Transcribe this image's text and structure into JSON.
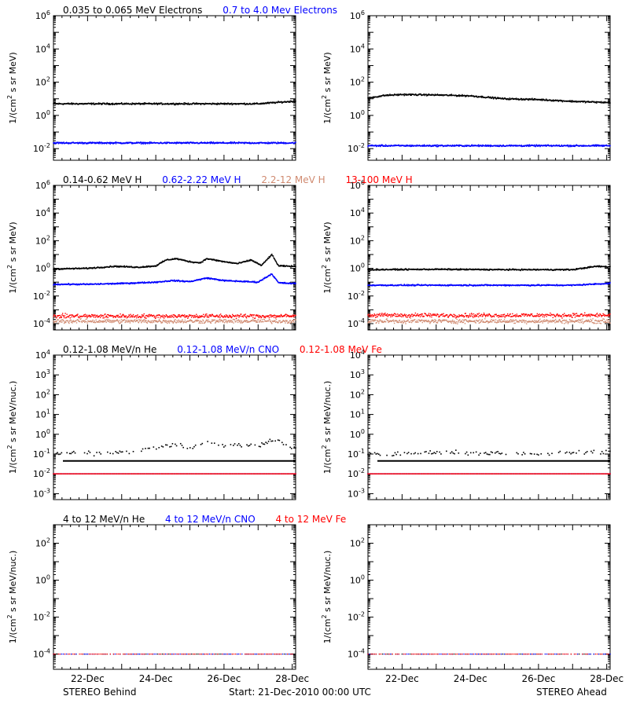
{
  "colors": {
    "black": "#000000",
    "blue": "#0000ff",
    "red": "#ff0000",
    "salmon": "#d08a70"
  },
  "legends": {
    "row1": [
      {
        "label": "0.035 to 0.065 MeV Electrons",
        "color": "#000000"
      },
      {
        "label": "0.7 to 4.0 Mev Electrons",
        "color": "#0000ff"
      }
    ],
    "row2": [
      {
        "label": "0.14-0.62 MeV H",
        "color": "#000000"
      },
      {
        "label": "0.62-2.22 MeV H",
        "color": "#0000ff"
      },
      {
        "label": "2.2-12 MeV H",
        "color": "#d08a70"
      },
      {
        "label": "13-100 MeV H",
        "color": "#ff0000"
      }
    ],
    "row3": [
      {
        "label": "0.12-1.08 MeV/n He",
        "color": "#000000"
      },
      {
        "label": "0.12-1.08 MeV/n CNO",
        "color": "#0000ff"
      },
      {
        "label": "0.12-1.08 MeV Fe",
        "color": "#ff0000"
      }
    ],
    "row4": [
      {
        "label": "4 to 12 MeV/n He",
        "color": "#000000"
      },
      {
        "label": "4 to 12 MeV/n CNO",
        "color": "#0000ff"
      },
      {
        "label": "4 to 12 MeV Fe",
        "color": "#ff0000"
      }
    ]
  },
  "footer": {
    "left": "STEREO Behind",
    "center": "Start: 21-Dec-2010 00:00 UTC",
    "right": "STEREO Ahead"
  },
  "chart_data": [
    {
      "panel": "row1-behind",
      "type": "scatter",
      "yscale": "log",
      "ylabel": "1/(cm² s sr MeV)",
      "ylim": [
        0.002,
        1000000
      ],
      "yticks": [
        0.01,
        1,
        100,
        10000,
        1000000
      ],
      "xticks": [
        "22-Dec",
        "24-Dec",
        "26-Dec",
        "28-Dec"
      ],
      "series": [
        {
          "name": "0.035 to 0.065 MeV Electrons",
          "color": "#000000",
          "x": [
            21,
            23,
            25,
            27,
            28
          ],
          "y": [
            5,
            5,
            5,
            5,
            7
          ]
        },
        {
          "name": "0.7 to 4.0 Mev Electrons",
          "color": "#0000ff",
          "x": [
            21,
            23,
            25,
            27,
            28
          ],
          "y": [
            0.022,
            0.022,
            0.022,
            0.022,
            0.022
          ]
        }
      ]
    },
    {
      "panel": "row1-ahead",
      "type": "scatter",
      "yscale": "log",
      "ylabel": "1/(cm² s sr MeV)",
      "ylim": [
        0.002,
        1000000
      ],
      "yticks": [
        0.01,
        1,
        100,
        10000,
        1000000
      ],
      "xticks": [
        "22-Dec",
        "24-Dec",
        "26-Dec",
        "28-Dec"
      ],
      "series": [
        {
          "name": "0.035 to 0.065 MeV Electrons",
          "color": "#000000",
          "x": [
            21,
            21.5,
            22,
            23,
            24,
            25,
            26,
            27,
            28
          ],
          "y": [
            11,
            16,
            18,
            17,
            15,
            10,
            9,
            7,
            6
          ]
        },
        {
          "name": "0.7 to 4.0 Mev Electrons",
          "color": "#0000ff",
          "x": [
            21,
            23,
            25,
            27,
            28
          ],
          "y": [
            0.015,
            0.015,
            0.015,
            0.015,
            0.015
          ]
        }
      ]
    },
    {
      "panel": "row2-behind",
      "type": "scatter",
      "yscale": "log",
      "ylabel": "1/(cm² s sr MeV)",
      "ylim": [
        3.5e-05,
        1000000
      ],
      "yticks": [
        0.0001,
        0.01,
        1,
        100,
        10000,
        1000000
      ],
      "xticks": [
        "22-Dec",
        "24-Dec",
        "26-Dec",
        "28-Dec"
      ],
      "series": [
        {
          "name": "0.14-0.62 MeV H",
          "color": "#000000",
          "x": [
            21,
            22,
            22.8,
            23.5,
            24,
            24.3,
            24.6,
            25,
            25.3,
            25.5,
            26,
            26.4,
            26.8,
            27.1,
            27.4,
            27.6,
            28
          ],
          "y": [
            0.9,
            1.0,
            1.4,
            1.2,
            1.5,
            4,
            5,
            3,
            2.5,
            5,
            3,
            2.2,
            4,
            1.6,
            10,
            1.5,
            1.4
          ]
        },
        {
          "name": "0.62-2.22 MeV H",
          "color": "#0000ff",
          "x": [
            21,
            22,
            23,
            24,
            24.5,
            25,
            25.5,
            26,
            27,
            27.4,
            27.6,
            28
          ],
          "y": [
            0.07,
            0.07,
            0.08,
            0.1,
            0.13,
            0.11,
            0.2,
            0.13,
            0.1,
            0.4,
            0.09,
            0.08
          ]
        },
        {
          "name": "2.2-12 MeV H",
          "color": "#d08a70",
          "x": [
            21,
            28
          ],
          "y": [
            0.00015,
            0.00015
          ]
        },
        {
          "name": "13-100 MeV H",
          "color": "#ff0000",
          "x": [
            21,
            28
          ],
          "y": [
            0.00035,
            0.00035
          ]
        }
      ]
    },
    {
      "panel": "row2-ahead",
      "type": "scatter",
      "yscale": "log",
      "ylabel": "1/(cm² s sr MeV)",
      "ylim": [
        3.5e-05,
        1000000
      ],
      "yticks": [
        0.0001,
        0.01,
        1,
        100,
        10000,
        1000000
      ],
      "xticks": [
        "22-Dec",
        "24-Dec",
        "26-Dec",
        "28-Dec"
      ],
      "series": [
        {
          "name": "0.14-0.62 MeV H",
          "color": "#000000",
          "x": [
            21,
            23,
            25,
            27,
            27.7,
            28
          ],
          "y": [
            0.8,
            0.85,
            0.8,
            0.8,
            1.4,
            1.3
          ]
        },
        {
          "name": "0.62-2.22 MeV H",
          "color": "#0000ff",
          "x": [
            21,
            23,
            25,
            27,
            28
          ],
          "y": [
            0.06,
            0.06,
            0.06,
            0.06,
            0.08
          ]
        },
        {
          "name": "2.2-12 MeV H",
          "color": "#d08a70",
          "x": [
            21,
            28
          ],
          "y": [
            0.00015,
            0.00015
          ]
        },
        {
          "name": "13-100 MeV H",
          "color": "#ff0000",
          "x": [
            21,
            28
          ],
          "y": [
            0.0004,
            0.0004
          ]
        }
      ]
    },
    {
      "panel": "row3-behind",
      "type": "scatter",
      "yscale": "log",
      "ylabel": "1/(cm² s sr MeV/nuc.)",
      "ylim": [
        0.0005,
        10000
      ],
      "yticks": [
        0.001,
        0.01,
        0.1,
        1,
        10,
        100,
        1000,
        10000
      ],
      "xticks": [
        "22-Dec",
        "24-Dec",
        "26-Dec",
        "28-Dec"
      ],
      "series": [
        {
          "name": "0.12-1.08 MeV/n He",
          "color": "#000000",
          "x": [
            21,
            22,
            23,
            24,
            24.5,
            25,
            25.5,
            26,
            26.5,
            27,
            27.5,
            28
          ],
          "y": [
            0.1,
            0.11,
            0.12,
            0.2,
            0.3,
            0.2,
            0.4,
            0.25,
            0.3,
            0.25,
            0.6,
            0.2
          ]
        },
        {
          "name": "0.12-1.08 MeV/n CNO",
          "color": "#0000ff",
          "x": [
            21,
            28
          ],
          "y": [
            0.01,
            0.01
          ]
        },
        {
          "name": "0.12-1.08 MeV Fe",
          "color": "#ff0000",
          "x": [
            21,
            28
          ],
          "y": [
            0.01,
            0.01
          ]
        }
      ]
    },
    {
      "panel": "row3-ahead",
      "type": "scatter",
      "yscale": "log",
      "ylabel": "1/(cm² s sr MeV/nuc.)",
      "ylim": [
        0.0005,
        10000
      ],
      "yticks": [
        0.001,
        0.01,
        0.1,
        1,
        10,
        100,
        1000,
        10000
      ],
      "xticks": [
        "22-Dec",
        "24-Dec",
        "26-Dec",
        "28-Dec"
      ],
      "series": [
        {
          "name": "0.12-1.08 MeV/n He",
          "color": "#000000",
          "x": [
            21,
            22,
            23,
            24,
            25,
            26,
            27,
            28
          ],
          "y": [
            0.1,
            0.1,
            0.12,
            0.12,
            0.1,
            0.1,
            0.12,
            0.13
          ]
        },
        {
          "name": "0.12-1.08 MeV/n CNO",
          "color": "#0000ff",
          "x": [
            21,
            28
          ],
          "y": [
            0.01,
            0.01
          ]
        },
        {
          "name": "0.12-1.08 MeV Fe",
          "color": "#ff0000",
          "x": [
            21,
            28
          ],
          "y": [
            0.01,
            0.01
          ]
        }
      ]
    },
    {
      "panel": "row4-behind",
      "type": "scatter",
      "yscale": "log",
      "ylabel": "1/(cm² s sr MeV/nuc.)",
      "ylim": [
        1.5e-05,
        1000
      ],
      "yticks": [
        0.0001,
        0.01,
        1,
        100
      ],
      "xticks": [
        "22-Dec",
        "24-Dec",
        "26-Dec",
        "28-Dec"
      ],
      "series": [
        {
          "name": "4 to 12 MeV/n He",
          "color": "#000000",
          "x": [
            21,
            28
          ],
          "y": [
            0.0001,
            0.0001
          ]
        },
        {
          "name": "4 to 12 MeV/n CNO",
          "color": "#0000ff",
          "x": [
            21,
            28
          ],
          "y": [
            0.0001,
            0.0001
          ]
        },
        {
          "name": "4 to 12 MeV Fe",
          "color": "#ff0000",
          "x": [
            21,
            28
          ],
          "y": [
            0.0001,
            0.0001
          ]
        }
      ]
    },
    {
      "panel": "row4-ahead",
      "type": "scatter",
      "yscale": "log",
      "ylabel": "1/(cm² s sr MeV/nuc.)",
      "ylim": [
        1.5e-05,
        1000
      ],
      "yticks": [
        0.0001,
        0.01,
        1,
        100
      ],
      "xticks": [
        "22-Dec",
        "24-Dec",
        "26-Dec",
        "28-Dec"
      ],
      "series": [
        {
          "name": "4 to 12 MeV/n He",
          "color": "#000000",
          "x": [
            21,
            28
          ],
          "y": [
            0.0001,
            0.0001
          ]
        },
        {
          "name": "4 to 12 MeV/n CNO",
          "color": "#0000ff",
          "x": [
            21,
            28
          ],
          "y": [
            0.0001,
            0.0001
          ]
        },
        {
          "name": "4 to 12 MeV Fe",
          "color": "#ff0000",
          "x": [
            21,
            28
          ],
          "y": [
            0.0001,
            0.0001
          ]
        }
      ]
    }
  ]
}
